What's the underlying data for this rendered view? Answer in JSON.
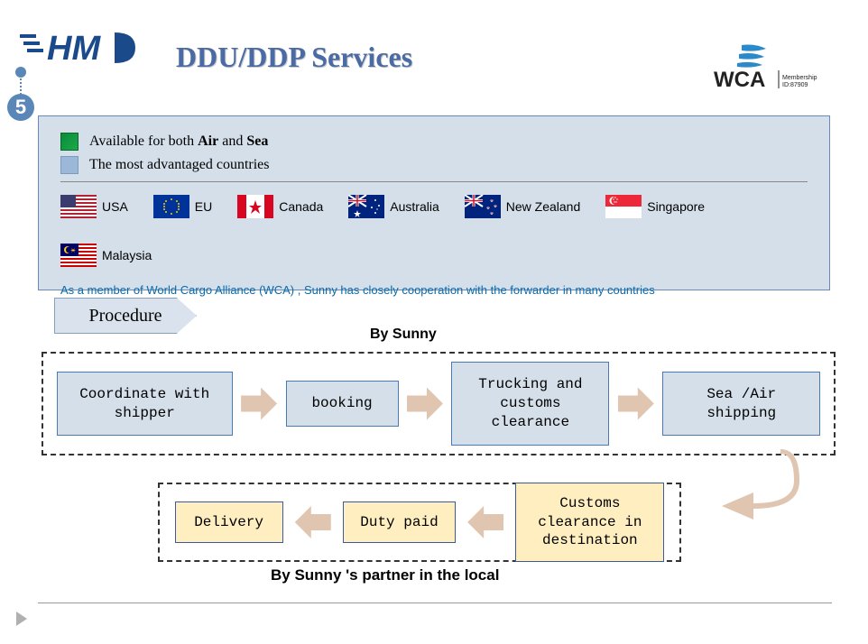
{
  "title": "DDU/DDP Services",
  "section_number": "5",
  "legend": {
    "green": {
      "prefix": "Available for both ",
      "b1": "Air",
      "mid": " and ",
      "b2": "Sea"
    },
    "blue": "The most advantaged countries"
  },
  "countries": [
    "USA",
    "EU",
    "Canada",
    "Australia",
    "New Zealand",
    "Singapore",
    "Malaysia"
  ],
  "wca_note": "As a member of World Cargo Alliance (WCA) , Sunny has closely cooperation with the forwarder in many countries",
  "wca_membership": "Membership ID:87909",
  "procedure_label": "Procedure",
  "by_sunny": "By Sunny",
  "steps_sunny": [
    "Coordinate with shipper",
    "booking",
    "Trucking and customs clearance",
    "Sea /Air shipping"
  ],
  "steps_partner": [
    "Customs clearance in destination",
    "Duty paid",
    "Delivery"
  ],
  "by_partner": "By Sunny 's partner in the local",
  "colors": {
    "title": "#4b6ba5",
    "box_bg": "#d4dfe9",
    "box_border": "#6a8ab5",
    "step_blue_bg": "#d4dfe9",
    "step_blue_border": "#4a7ab5",
    "step_yel_bg": "#ffefc0",
    "step_yel_border": "#3a5a9a",
    "arrow_fill": "#e0c5b0",
    "num_bg": "#5b87b8",
    "wca_text": "#0a6aaa"
  },
  "flag_svg": {
    "USA": "<rect width='40' height='26' fill='#b22234'/><g fill='#fff'><rect y='2' width='40' height='2'/><rect y='6' width='40' height='2'/><rect y='10' width='40' height='2'/><rect y='14' width='40' height='2'/><rect y='18' width='40' height='2'/><rect y='22' width='40' height='2'/></g><rect width='17' height='14' fill='#3c3b6e'/>",
    "EU": "<rect width='40' height='26' fill='#003399'/><g fill='#ffcc00'><circle cx='20' cy='5' r='1'/><circle cx='20' cy='21' r='1'/><circle cx='12' cy='13' r='1'/><circle cx='28' cy='13' r='1'/><circle cx='14' cy='7' r='1'/><circle cx='26' cy='7' r='1'/><circle cx='14' cy='19' r='1'/><circle cx='26' cy='19' r='1'/><circle cx='12' cy='10' r='1'/><circle cx='28' cy='10' r='1'/><circle cx='12' cy='16' r='1'/><circle cx='28' cy='16' r='1'/></g>",
    "Canada": "<rect width='40' height='26' fill='#fff'/><rect width='10' height='26' fill='#d80621'/><rect x='30' width='10' height='26' fill='#d80621'/><polygon points='20,6 22,12 27,12 23,15 25,21 20,17 15,21 17,15 13,12 18,12' fill='#d80621'/>",
    "Australia": "<rect width='40' height='26' fill='#00247d'/><rect width='20' height='13' fill='#00247d'/><path d='M0,0 L20,13 M20,0 L0,13' stroke='#fff' stroke-width='2'/><path d='M10,0 V13 M0,6.5 H20' stroke='#fff' stroke-width='3'/><path d='M10,0 V13 M0,6.5 H20' stroke='#cf142b' stroke-width='1.5'/><g fill='#fff'><polygon points='10,17 11,20 14,20 11.5,22 12.5,25 10,23 7.5,25 8.5,22 6,20 9,20'/><circle cx='30' cy='6' r='1'/><circle cx='34' cy='12' r='1'/><circle cx='30' cy='20' r='1'/><circle cx='26' cy='14' r='1'/><circle cx='32' cy='16' r='0.7'/></g>",
    "New Zealand": "<rect width='40' height='26' fill='#00247d'/><rect width='20' height='13' fill='#00247d'/><path d='M0,0 L20,13 M20,0 L0,13' stroke='#fff' stroke-width='2'/><path d='M10,0 V13 M0,6.5 H20' stroke='#fff' stroke-width='3'/><path d='M10,0 V13 M0,6.5 H20' stroke='#cf142b' stroke-width='1.5'/><g fill='#cf142b' stroke='#fff' stroke-width='0.3'><polygon points='30,5 31,8 28,6 32,6 29,8'/><polygon points='34,11 35,14 32,12 36,12 33,14'/><polygon points='30,19 31,22 28,20 32,20 29,22'/><polygon points='26,13 27,16 24,14 28,14 25,16'/></g>",
    "Singapore": "<rect width='40' height='13' fill='#ed2939'/><rect y='13' width='40' height='13' fill='#fff'/><circle cx='9' cy='6.5' r='4.5' fill='#fff'/><circle cx='11' cy='6.5' r='4.5' fill='#ed2939'/><g fill='#fff'><circle cx='11' cy='3' r='0.7'/><circle cx='9' cy='5' r='0.7'/><circle cx='13' cy='5' r='0.7'/><circle cx='10' cy='8' r='0.7'/><circle cx='12' cy='8' r='0.7'/></g>",
    "Malaysia": "<rect width='40' height='26' fill='#cc0001'/><g fill='#fff'><rect y='2' width='40' height='2'/><rect y='6' width='40' height='2'/><rect y='10' width='40' height='2'/><rect y='14' width='40' height='2'/><rect y='18' width='40' height='2'/><rect y='22' width='40' height='2'/></g><rect width='20' height='14' fill='#010066'/><circle cx='8' cy='7' r='4' fill='#ffcc00'/><circle cx='9.5' cy='7' r='3.5' fill='#010066'/><polygon points='14,7 16,5 15,7 17,7 15,8 16,10 14,8 12,10 13,8 11,7 13,7 12,5' fill='#ffcc00'/>"
  }
}
